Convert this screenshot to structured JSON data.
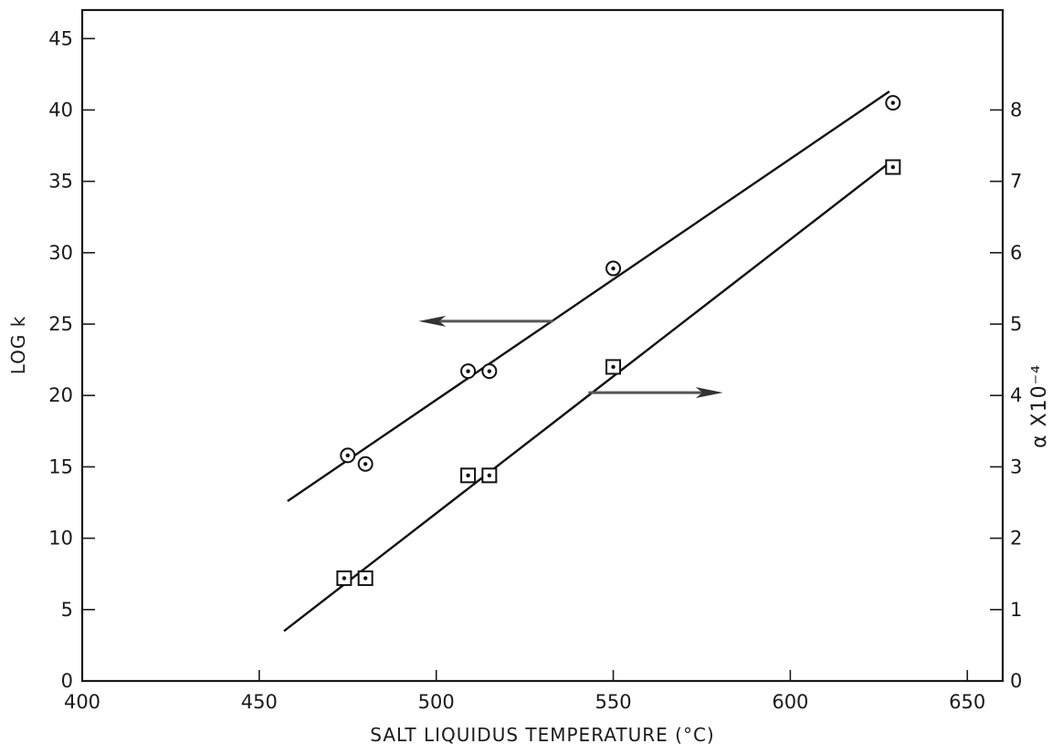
{
  "chart_data": {
    "type": "scatter",
    "title": "",
    "xlabel": "SALT LIQUIDUS TEMPERATURE (°C)",
    "ylabel": "LOG k",
    "y2label": "α X10⁻⁴",
    "xlim": [
      400,
      660
    ],
    "ylim": [
      0,
      47
    ],
    "y2lim": [
      0,
      9.4
    ],
    "x_ticks": [
      "400",
      "450",
      "500",
      "550",
      "600",
      "650"
    ],
    "y_ticks": [
      "0",
      "5",
      "10",
      "15",
      "20",
      "25",
      "30",
      "35",
      "40",
      "45"
    ],
    "y2_ticks": [
      "0",
      "1",
      "2",
      "3",
      "4",
      "5",
      "6",
      "7",
      "8"
    ],
    "grid": false,
    "series": [
      {
        "axis": "left",
        "marker": "circle-dot",
        "points": [
          {
            "x": 475,
            "y": 15.8
          },
          {
            "x": 480,
            "y": 15.2
          },
          {
            "x": 509,
            "y": 21.7
          },
          {
            "x": 515,
            "y": 21.7
          },
          {
            "x": 550,
            "y": 28.9
          },
          {
            "x": 629,
            "y": 40.5
          }
        ],
        "fit": [
          {
            "x": 458,
            "y": 12.6
          },
          {
            "x": 628,
            "y": 41.3
          }
        ],
        "arrow": {
          "direction": "left",
          "x_from": 533,
          "x_to": 495,
          "y": 25.2
        }
      },
      {
        "axis": "right",
        "marker": "square-dot",
        "points": [
          {
            "x": 474,
            "y": 1.44
          },
          {
            "x": 480,
            "y": 1.44
          },
          {
            "x": 509,
            "y": 2.88
          },
          {
            "x": 515,
            "y": 2.88
          },
          {
            "x": 550,
            "y": 4.4
          },
          {
            "x": 629,
            "y": 7.2
          }
        ],
        "fit": [
          {
            "x": 457,
            "y": 0.7
          },
          {
            "x": 628,
            "y": 7.26
          }
        ],
        "arrow": {
          "direction": "right",
          "x_from": 543,
          "x_to": 581,
          "y": 4.04
        }
      }
    ]
  }
}
